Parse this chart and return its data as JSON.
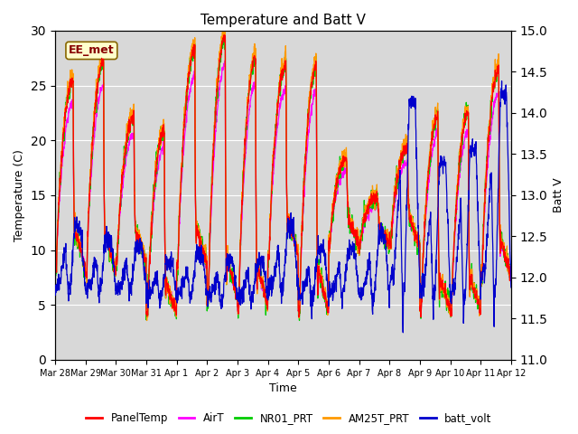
{
  "title": "Temperature and Batt V",
  "xlabel": "Time",
  "ylabel_left": "Temperature (C)",
  "ylabel_right": "Batt V",
  "ylim_left": [
    0,
    30
  ],
  "ylim_right": [
    11.0,
    15.0
  ],
  "annotation": "EE_met",
  "plot_bg_color": "#d8d8d8",
  "fig_bg_color": "#ffffff",
  "legend_entries": [
    "PanelTemp",
    "AirT",
    "NR01_PRT",
    "AM25T_PRT",
    "batt_volt"
  ],
  "legend_colors": [
    "#ff0000",
    "#ff00ff",
    "#00cc00",
    "#ff9900",
    "#0000cc"
  ],
  "yticks_left": [
    0,
    5,
    10,
    15,
    20,
    25,
    30
  ],
  "yticks_right": [
    11.0,
    11.5,
    12.0,
    12.5,
    13.0,
    13.5,
    14.0,
    14.5,
    15.0
  ],
  "xtick_labels": [
    "Mar 28",
    "Mar 29",
    "Mar 30",
    "Mar 31",
    "Apr 1",
    "Apr 2",
    "Apr 3",
    "Apr 4",
    "Apr 5",
    "Apr 6",
    "Apr 7",
    "Apr 8",
    "Apr 9",
    "Apr 10",
    "Apr 11",
    "Apr 12"
  ],
  "figsize": [
    6.4,
    4.8
  ],
  "dpi": 100
}
